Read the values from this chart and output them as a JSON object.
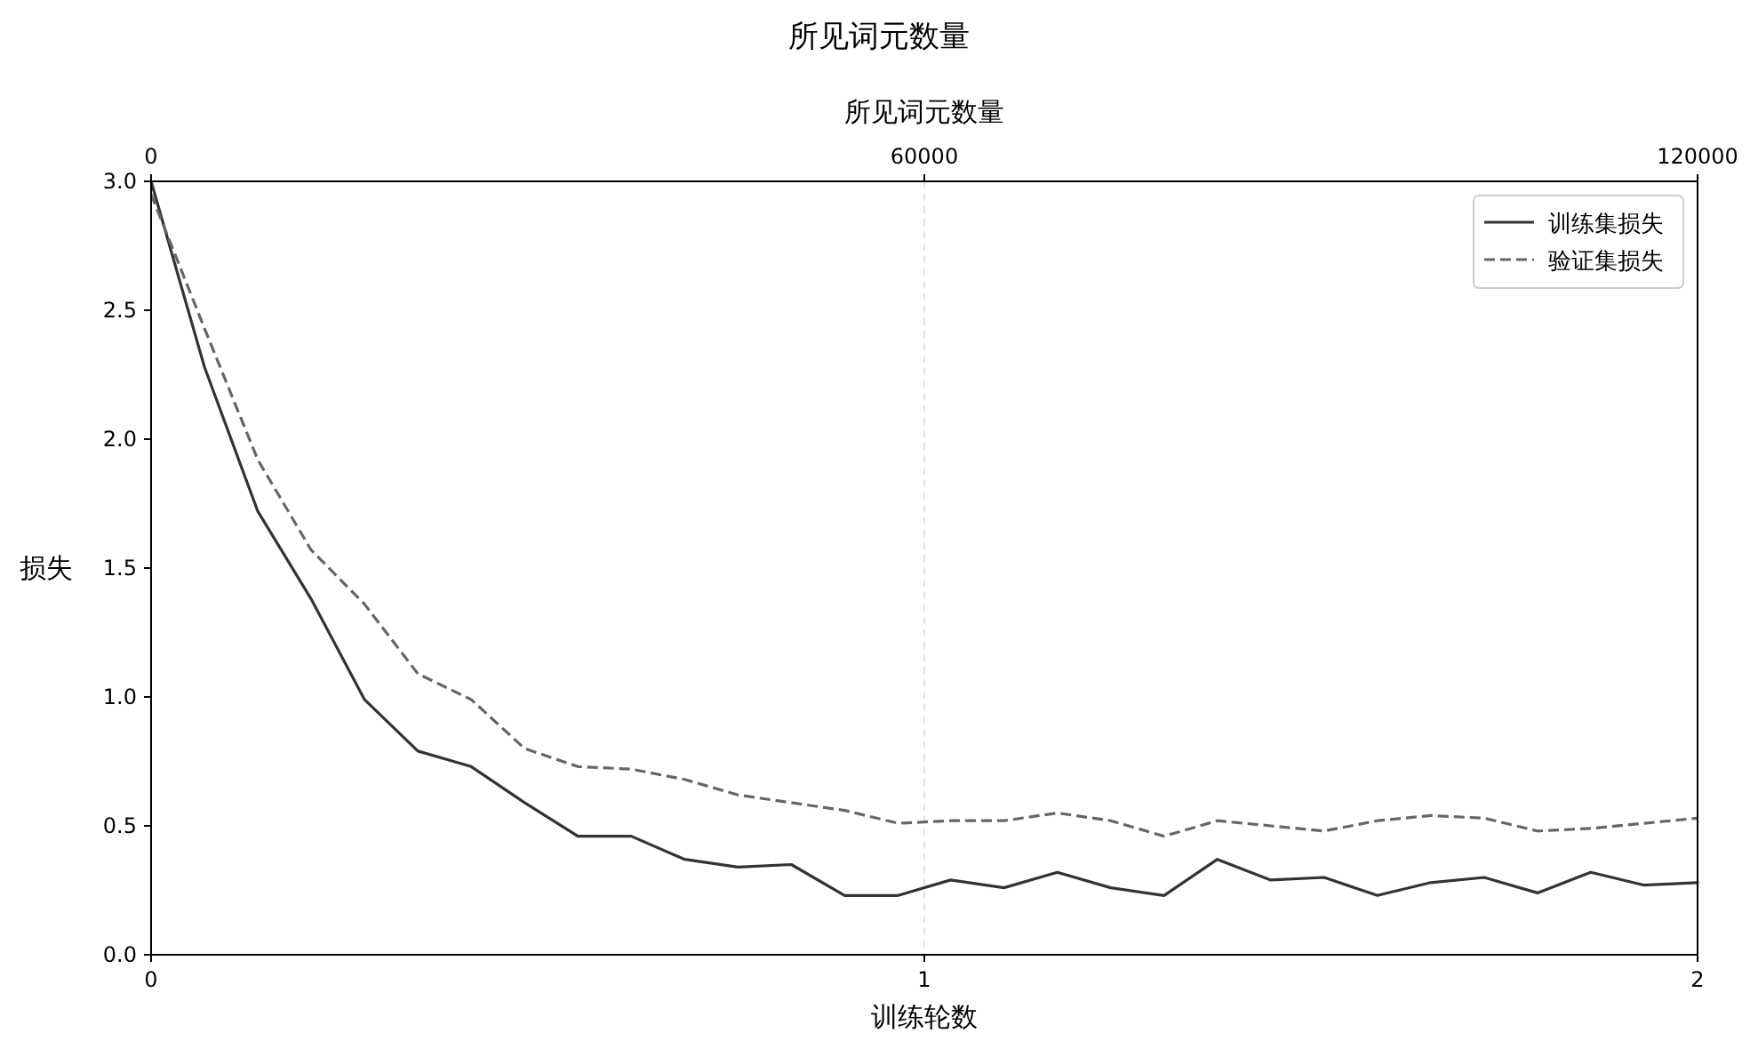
{
  "chart_data": {
    "type": "line",
    "title": "所见词元数量",
    "xlabel": "训练轮数",
    "ylabel": "损失",
    "x2label": "所见词元数量",
    "xlim": [
      0,
      2
    ],
    "xticks": [
      0,
      1,
      2
    ],
    "ylim": [
      0,
      3.0
    ],
    "yticks": [
      {
        "value": 0,
        "label": "0.0"
      },
      0.5,
      {
        "value": 1,
        "label": "1.0"
      },
      1.5,
      {
        "value": 2,
        "label": "2.0"
      },
      2.5,
      {
        "value": 3,
        "label": "3.0"
      }
    ],
    "x2lim": [
      0,
      120000
    ],
    "x2ticks": [
      0,
      60000,
      120000
    ],
    "grid": "x",
    "legend": "top right",
    "x": [
      0,
      0.069,
      0.138,
      0.207,
      0.276,
      0.345,
      0.414,
      0.483,
      0.552,
      0.621,
      0.69,
      0.759,
      0.828,
      0.897,
      0.966,
      1.034,
      1.103,
      1.172,
      1.241,
      1.31,
      1.379,
      1.448,
      1.517,
      1.586,
      1.655,
      1.724,
      1.793,
      1.862,
      1.931,
      2.0
    ],
    "series": [
      {
        "name": "训练集损失",
        "color": "#333333",
        "line_style": "solid",
        "values": [
          3.0,
          2.28,
          1.72,
          1.38,
          0.99,
          0.79,
          0.73,
          0.59,
          0.46,
          0.46,
          0.37,
          0.34,
          0.35,
          0.23,
          0.23,
          0.29,
          0.26,
          0.32,
          0.26,
          0.23,
          0.37,
          0.29,
          0.3,
          0.23,
          0.28,
          0.3,
          0.24,
          0.32,
          0.27,
          0.28
        ]
      },
      {
        "name": "验证集损失",
        "color": "#666666",
        "line_style": "dashed",
        "values": [
          2.95,
          2.43,
          1.92,
          1.57,
          1.36,
          1.09,
          0.99,
          0.8,
          0.73,
          0.72,
          0.68,
          0.62,
          0.59,
          0.56,
          0.51,
          0.52,
          0.52,
          0.55,
          0.52,
          0.46,
          0.52,
          0.5,
          0.48,
          0.52,
          0.54,
          0.53,
          0.48,
          0.49,
          0.51,
          0.53
        ]
      }
    ]
  }
}
